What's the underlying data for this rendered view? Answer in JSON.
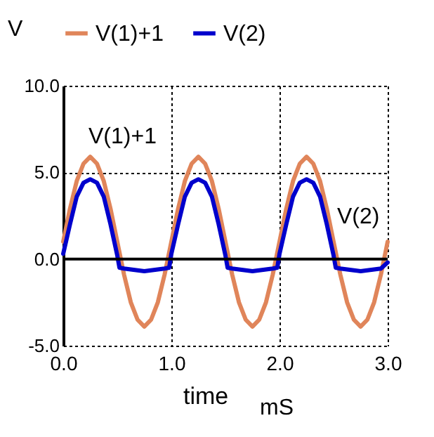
{
  "chart_data": {
    "type": "line",
    "ylabel": "V",
    "xlabel": "time",
    "legend": "top",
    "grid": true,
    "line_style": "solid",
    "xlim": [
      0,
      3
    ],
    "ylim": [
      -5,
      10
    ],
    "xticks": [
      {
        "value": 0,
        "label": "0.0"
      },
      {
        "value": 1,
        "label": "1.0"
      },
      {
        "value": 2,
        "label": "2.0"
      },
      {
        "value": 3,
        "label": "3.0"
      }
    ],
    "yticks": [
      {
        "value": -5,
        "label": "-5.0"
      },
      {
        "value": 0,
        "label": "0.0"
      },
      {
        "value": 5,
        "label": "5.0"
      },
      {
        "value": 10,
        "label": "10.0"
      }
    ],
    "ref_lines": [
      {
        "axis": "y",
        "value": 0,
        "color": "#000000"
      }
    ],
    "annotations": [
      "V(1)+1",
      "V(2)",
      "mS"
    ],
    "series": [
      {
        "name": "V(1)+1",
        "color": "#e0855a",
        "x": [
          0,
          0.0625,
          0.125,
          0.1875,
          0.25,
          0.3125,
          0.375,
          0.4375,
          0.5,
          0.5625,
          0.625,
          0.6875,
          0.75,
          0.8125,
          0.875,
          0.9375,
          1,
          1.0625,
          1.125,
          1.1875,
          1.25,
          1.3125,
          1.375,
          1.4375,
          1.5,
          1.5625,
          1.625,
          1.6875,
          1.75,
          1.8125,
          1.875,
          1.9375,
          2,
          2.0625,
          2.125,
          2.1875,
          2.25,
          2.3125,
          2.375,
          2.4375,
          2.5,
          2.5625,
          2.625,
          2.6875,
          2.75,
          2.8125,
          2.875,
          2.9375,
          3
        ],
        "values": [
          1.0,
          2.9,
          4.5,
          5.5,
          5.9,
          5.5,
          4.5,
          2.9,
          1.0,
          -0.9,
          -2.5,
          -3.5,
          -3.9,
          -3.5,
          -2.5,
          -0.9,
          1.0,
          2.9,
          4.5,
          5.5,
          5.9,
          5.5,
          4.5,
          2.9,
          1.0,
          -0.9,
          -2.5,
          -3.5,
          -3.9,
          -3.5,
          -2.5,
          -0.9,
          1.0,
          2.9,
          4.5,
          5.5,
          5.9,
          5.5,
          4.5,
          2.9,
          1.0,
          -0.9,
          -2.5,
          -3.5,
          -3.9,
          -3.5,
          -2.5,
          -0.9,
          1.0
        ]
      },
      {
        "name": "V(2)",
        "color": "#0000cc",
        "x": [
          0,
          0.0625,
          0.125,
          0.1875,
          0.25,
          0.3125,
          0.375,
          0.4375,
          0.5,
          0.52,
          0.5625,
          0.625,
          0.6875,
          0.75,
          0.8125,
          0.875,
          0.9375,
          0.98,
          1,
          1.0625,
          1.125,
          1.1875,
          1.25,
          1.3125,
          1.375,
          1.4375,
          1.5,
          1.52,
          1.5625,
          1.625,
          1.6875,
          1.75,
          1.8125,
          1.875,
          1.9375,
          1.98,
          2,
          2.0625,
          2.125,
          2.1875,
          2.25,
          2.3125,
          2.375,
          2.4375,
          2.5,
          2.52,
          2.5625,
          2.625,
          2.6875,
          2.75,
          2.8125,
          2.875,
          2.9375,
          3
        ],
        "values": [
          0.3,
          2.0,
          3.6,
          4.4,
          4.6,
          4.4,
          3.6,
          2.0,
          0.2,
          -0.5,
          -0.55,
          -0.6,
          -0.65,
          -0.7,
          -0.65,
          -0.6,
          -0.55,
          -0.5,
          0.3,
          2.0,
          3.6,
          4.4,
          4.6,
          4.4,
          3.6,
          2.0,
          0.2,
          -0.5,
          -0.55,
          -0.6,
          -0.65,
          -0.7,
          -0.65,
          -0.6,
          -0.55,
          -0.5,
          0.3,
          2.0,
          3.6,
          4.4,
          4.6,
          4.4,
          3.6,
          2.0,
          0.2,
          -0.5,
          -0.55,
          -0.6,
          -0.65,
          -0.7,
          -0.65,
          -0.6,
          -0.55,
          -0.2
        ]
      }
    ]
  }
}
